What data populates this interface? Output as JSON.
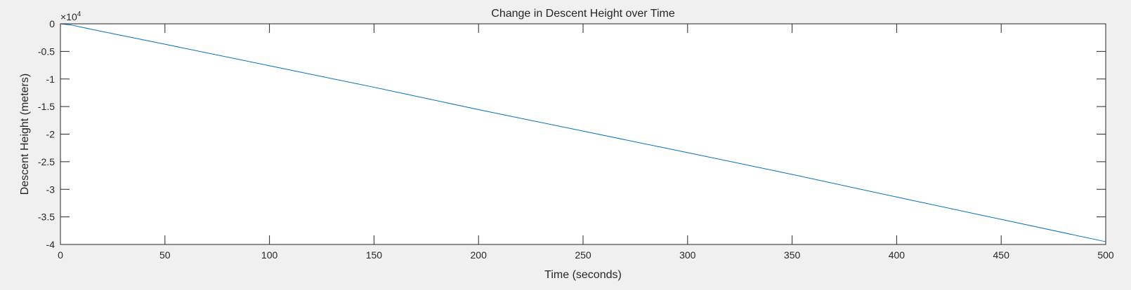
{
  "chart_data": {
    "type": "line",
    "title": "Change in Descent Height over Time",
    "xlabel": "Time (seconds)",
    "ylabel": "Descent Height (meters)",
    "xlim": [
      0,
      500
    ],
    "ylim": [
      -4,
      0
    ],
    "x_ticks": [
      0,
      50,
      100,
      150,
      200,
      250,
      300,
      350,
      400,
      450,
      500
    ],
    "x_tick_labels": [
      "0",
      "50",
      "100",
      "150",
      "200",
      "250",
      "300",
      "350",
      "400",
      "450",
      "500"
    ],
    "y_ticks": [
      0,
      -0.5,
      -1,
      -1.5,
      -2,
      -2.5,
      -3,
      -3.5,
      -4
    ],
    "y_tick_labels": [
      "0",
      "-0.5",
      "-1",
      "-1.5",
      "-2",
      "-2.5",
      "-3",
      "-3.5",
      "-4"
    ],
    "y_exponent": {
      "base": "×10",
      "power": "4"
    },
    "grid": false,
    "colors": {
      "line": "#0072bd",
      "axes": "#262626",
      "background": "#f0f0f0",
      "plot_area": "#ffffff"
    },
    "series": [
      {
        "x": [
          0,
          5,
          10,
          20,
          50,
          100,
          150,
          200,
          250,
          300,
          350,
          400,
          450,
          500
        ],
        "y": [
          0,
          -0.02,
          -0.06,
          -0.14,
          -0.37,
          -0.76,
          -1.15,
          -1.555,
          -1.945,
          -2.335,
          -2.73,
          -3.14,
          -3.545,
          -3.95
        ]
      }
    ]
  }
}
